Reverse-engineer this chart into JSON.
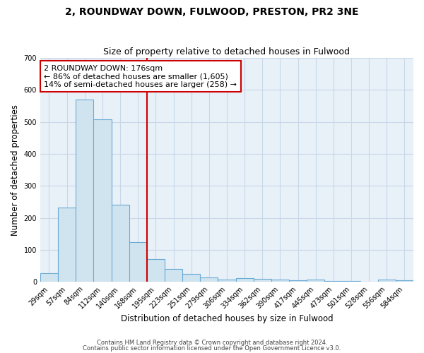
{
  "title1": "2, ROUNDWAY DOWN, FULWOOD, PRESTON, PR2 3NE",
  "title2": "Size of property relative to detached houses in Fulwood",
  "xlabel": "Distribution of detached houses by size in Fulwood",
  "ylabel": "Number of detached properties",
  "bar_labels": [
    "29sqm",
    "57sqm",
    "84sqm",
    "112sqm",
    "140sqm",
    "168sqm",
    "195sqm",
    "223sqm",
    "251sqm",
    "279sqm",
    "306sqm",
    "334sqm",
    "362sqm",
    "390sqm",
    "417sqm",
    "445sqm",
    "473sqm",
    "501sqm",
    "528sqm",
    "556sqm",
    "584sqm"
  ],
  "bar_values": [
    27,
    232,
    570,
    508,
    242,
    125,
    70,
    40,
    25,
    13,
    8,
    12,
    10,
    6,
    5,
    6,
    3,
    2,
    1,
    6,
    5
  ],
  "bar_color": "#d0e4f0",
  "bar_edge_color": "#6aaad4",
  "grid_color": "#c8d8e8",
  "background_color": "#ffffff",
  "plot_bg_color": "#e8f0f8",
  "vline_color": "#cc0000",
  "vline_x": 5.5,
  "annotation_text": "2 ROUNDWAY DOWN: 176sqm\n← 86% of detached houses are smaller (1,605)\n14% of semi-detached houses are larger (258) →",
  "annotation_box_facecolor": "#ffffff",
  "annotation_box_edgecolor": "#cc0000",
  "footer1": "Contains HM Land Registry data © Crown copyright and database right 2024.",
  "footer2": "Contains public sector information licensed under the Open Government Licence v3.0.",
  "ylim": [
    0,
    700
  ],
  "title1_fontsize": 10,
  "title2_fontsize": 9,
  "annot_fontsize": 8,
  "tick_fontsize": 7,
  "ylabel_fontsize": 8.5,
  "xlabel_fontsize": 8.5,
  "footer_fontsize": 6
}
